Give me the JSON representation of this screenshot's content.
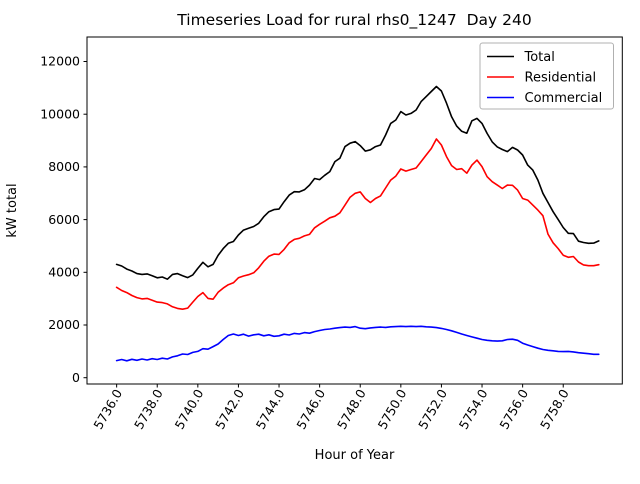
{
  "chart_data": {
    "type": "line",
    "title": "Timeseries Load for rural rhs0_1247  Day 240",
    "xlabel": "Hour of Year",
    "ylabel": "kW total",
    "x_start": 5736.0,
    "x_step": 0.25,
    "xlim": [
      5734.54,
      5760.91
    ],
    "ylim": [
      -239,
      12930
    ],
    "grid": false,
    "legend_position": "upper right",
    "xticks": {
      "values": [
        5736,
        5738,
        5740,
        5742,
        5744,
        5746,
        5748,
        5750,
        5752,
        5754,
        5756,
        5758
      ],
      "labels": [
        "5736.0",
        "5738.0",
        "5740.0",
        "5742.0",
        "5744.0",
        "5746.0",
        "5748.0",
        "5750.0",
        "5752.0",
        "5754.0",
        "5756.0",
        "5758.0"
      ],
      "rotation": 60
    },
    "yticks": {
      "values": [
        0,
        2000,
        4000,
        6000,
        8000,
        10000,
        12000
      ],
      "labels": [
        "0",
        "2000",
        "4000",
        "6000",
        "8000",
        "10000",
        "12000"
      ]
    },
    "series": [
      {
        "name": "Total",
        "color": "#000000",
        "values": [
          4300,
          4240,
          4120,
          4050,
          3950,
          3920,
          3940,
          3870,
          3790,
          3820,
          3740,
          3920,
          3950,
          3870,
          3800,
          3900,
          4150,
          4380,
          4210,
          4300,
          4640,
          4900,
          5100,
          5170,
          5415,
          5600,
          5670,
          5740,
          5860,
          6110,
          6300,
          6380,
          6400,
          6680,
          6930,
          7060,
          7050,
          7130,
          7310,
          7560,
          7520,
          7680,
          7820,
          8200,
          8330,
          8770,
          8900,
          8960,
          8810,
          8600,
          8650,
          8770,
          8830,
          9210,
          9650,
          9780,
          10100,
          9970,
          10030,
          10160,
          10480,
          10670,
          10860,
          11050,
          10880,
          10420,
          9900,
          9550,
          9350,
          9280,
          9750,
          9840,
          9650,
          9270,
          8950,
          8760,
          8660,
          8580,
          8740,
          8640,
          8450,
          8070,
          7880,
          7500,
          7000,
          6650,
          6300,
          6000,
          5700,
          5480,
          5470,
          5180,
          5130,
          5100,
          5110,
          5190
        ]
      },
      {
        "name": "Residential",
        "color": "#ff0000",
        "values": [
          3430,
          3310,
          3230,
          3120,
          3040,
          2990,
          3010,
          2940,
          2870,
          2850,
          2800,
          2690,
          2630,
          2600,
          2640,
          2870,
          3080,
          3230,
          3010,
          2980,
          3240,
          3400,
          3530,
          3600,
          3790,
          3860,
          3910,
          3980,
          4170,
          4420,
          4610,
          4690,
          4680,
          4870,
          5120,
          5250,
          5290,
          5380,
          5440,
          5690,
          5820,
          5940,
          6070,
          6130,
          6260,
          6550,
          6850,
          7000,
          7050,
          6800,
          6650,
          6800,
          6900,
          7200,
          7500,
          7650,
          7920,
          7840,
          7900,
          7960,
          8200,
          8450,
          8700,
          9060,
          8830,
          8390,
          8050,
          7900,
          7930,
          7760,
          8070,
          8260,
          8010,
          7630,
          7440,
          7310,
          7180,
          7310,
          7300,
          7120,
          6800,
          6740,
          6550,
          6360,
          6150,
          5450,
          5120,
          4900,
          4650,
          4570,
          4600,
          4390,
          4280,
          4250,
          4250,
          4290
        ]
      },
      {
        "name": "Commercial",
        "color": "#0000ff",
        "values": [
          650,
          690,
          640,
          700,
          660,
          710,
          670,
          720,
          690,
          740,
          710,
          790,
          830,
          900,
          880,
          960,
          1000,
          1100,
          1080,
          1180,
          1280,
          1450,
          1600,
          1660,
          1600,
          1650,
          1580,
          1630,
          1650,
          1590,
          1630,
          1570,
          1590,
          1650,
          1620,
          1680,
          1660,
          1710,
          1690,
          1750,
          1790,
          1830,
          1850,
          1880,
          1900,
          1920,
          1910,
          1940,
          1880,
          1860,
          1890,
          1910,
          1920,
          1910,
          1930,
          1940,
          1950,
          1940,
          1950,
          1940,
          1950,
          1930,
          1920,
          1900,
          1870,
          1830,
          1780,
          1720,
          1660,
          1600,
          1550,
          1500,
          1450,
          1420,
          1400,
          1390,
          1400,
          1450,
          1460,
          1420,
          1310,
          1240,
          1180,
          1120,
          1070,
          1040,
          1020,
          1000,
          990,
          1000,
          980,
          950,
          930,
          910,
          890,
          890
        ]
      }
    ]
  }
}
